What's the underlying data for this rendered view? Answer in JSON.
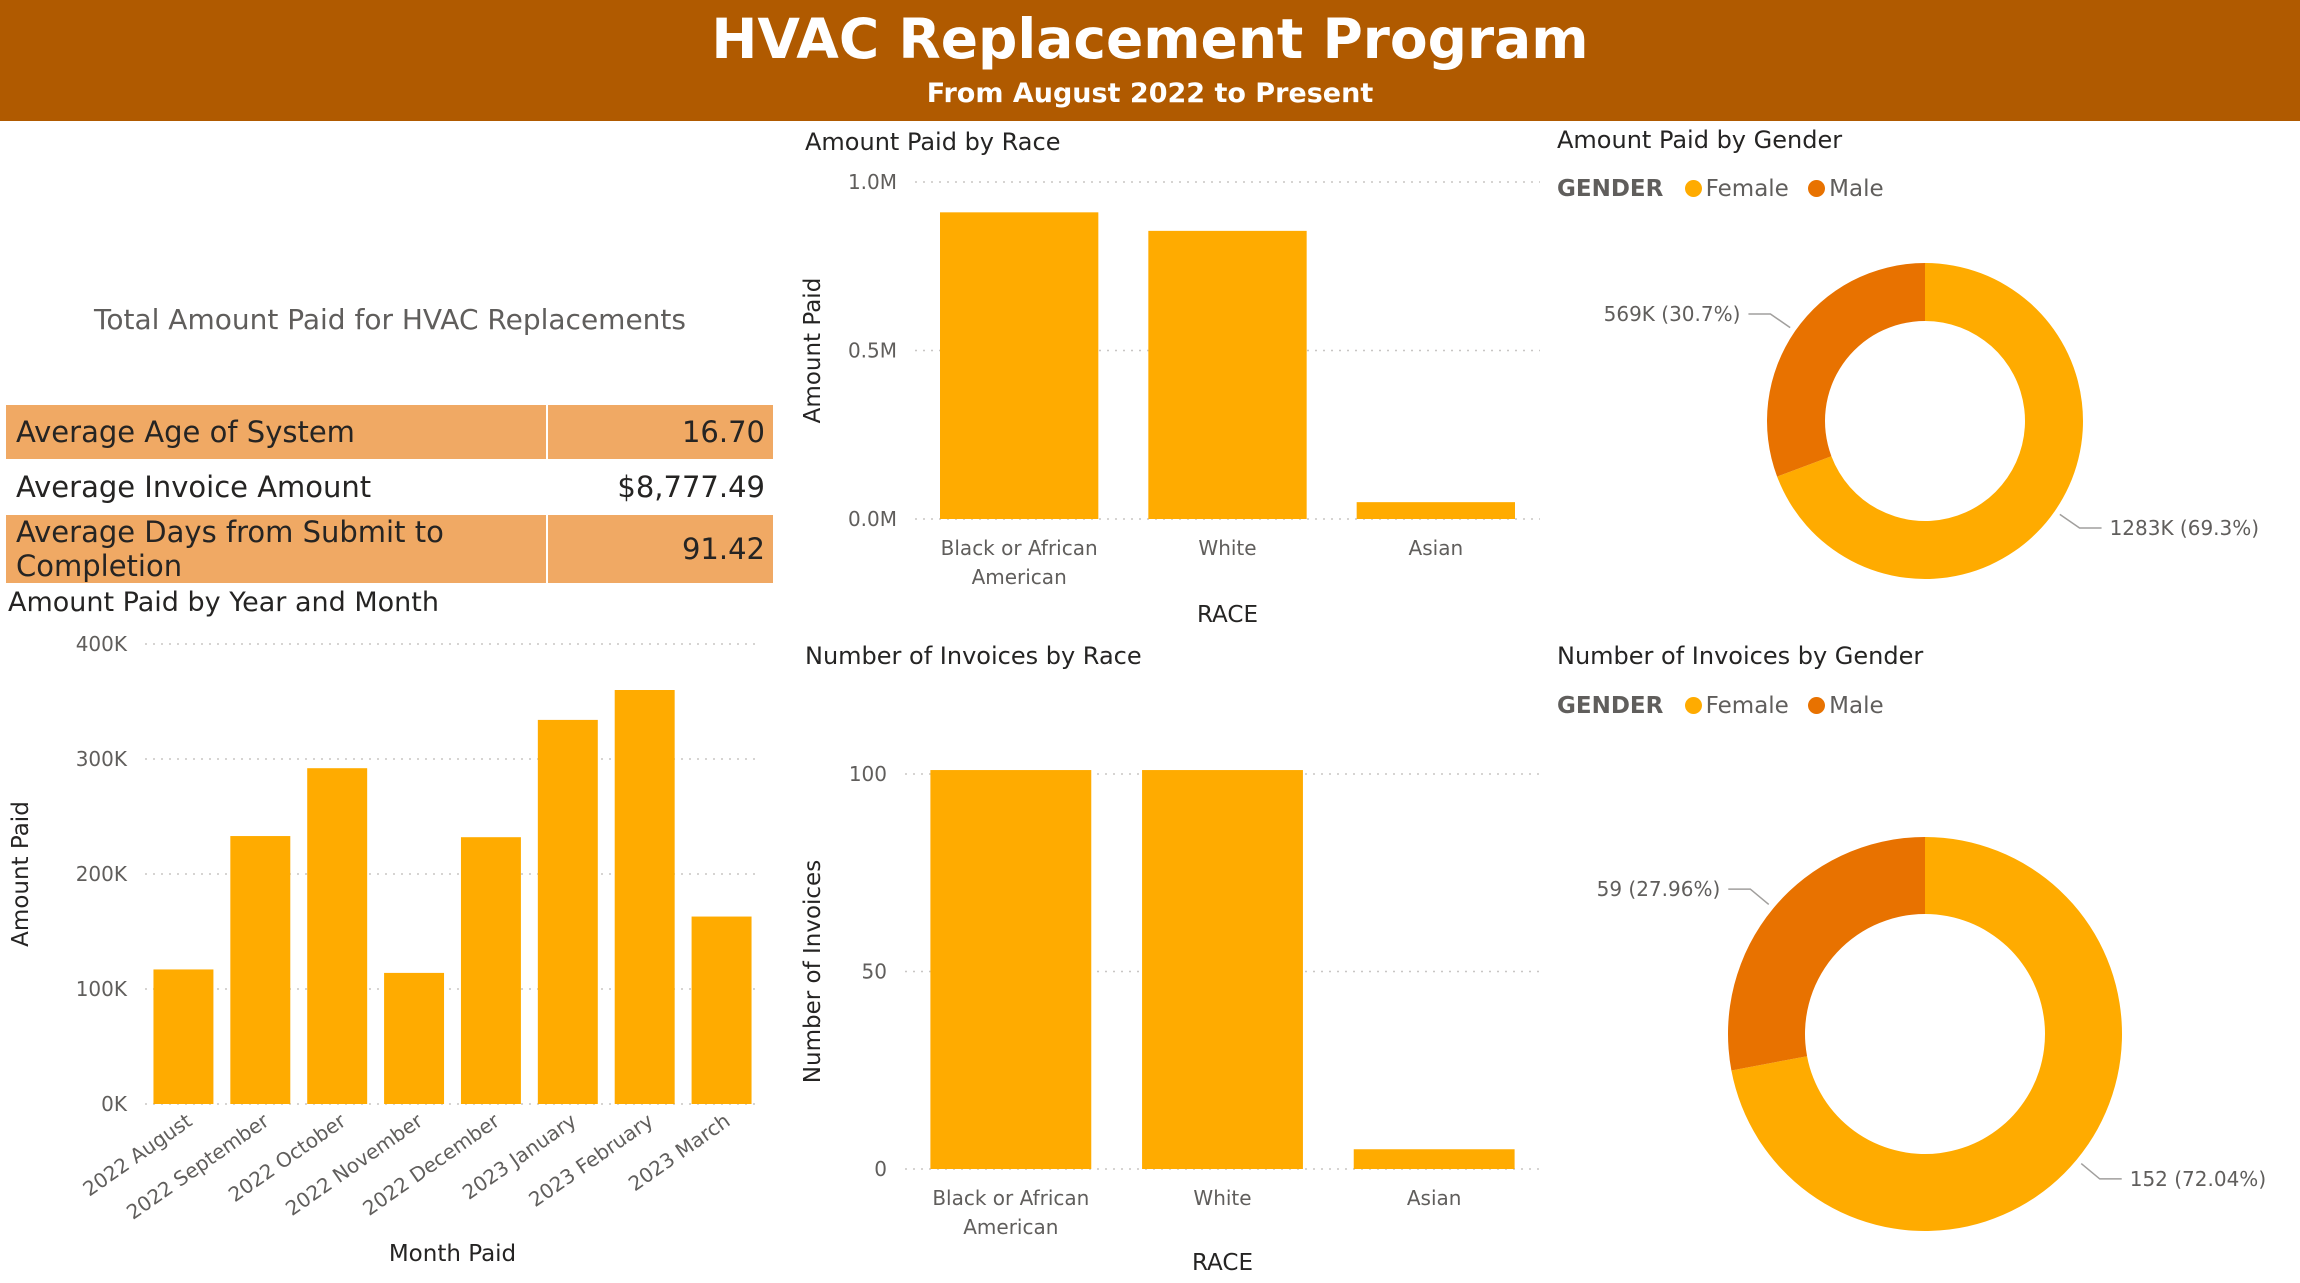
{
  "header": {
    "title": "HVAC Replacement Program",
    "subtitle": "From August 2022 to Present"
  },
  "colors": {
    "primary": "#ffab00",
    "secondary": "#e87200",
    "header_bg": "#b05a00",
    "highlight_row": "#f0a964"
  },
  "total_card": {
    "label": "Total Amount Paid for HVAC Replacements"
  },
  "kpis": [
    {
      "label": "Average Age of System",
      "value": "16.70",
      "highlight": true
    },
    {
      "label": "Average Invoice Amount",
      "value": "$8,777.49",
      "highlight": false
    },
    {
      "label": "Average Days from Submit to Completion",
      "value": "91.42",
      "highlight": true
    }
  ],
  "chart_data": [
    {
      "id": "paid_by_month",
      "type": "bar",
      "title": "Amount Paid by Year and Month",
      "xlabel": "Month Paid",
      "ylabel": "Amount Paid",
      "categories": [
        "2022 August",
        "2022 September",
        "2022 October",
        "2022 November",
        "2022 December",
        "2023 January",
        "2023 February",
        "2023 March"
      ],
      "values": [
        117000,
        233000,
        292000,
        114000,
        232000,
        334000,
        360000,
        163000
      ],
      "ylim": [
        0,
        400000
      ],
      "yticks": [
        0,
        100000,
        200000,
        300000,
        400000
      ],
      "ytick_labels": [
        "0K",
        "100K",
        "200K",
        "300K",
        "400K"
      ],
      "grid": true
    },
    {
      "id": "paid_by_race",
      "type": "bar",
      "title": "Amount Paid by Race",
      "xlabel": "RACE",
      "ylabel": "Amount Paid",
      "categories": [
        "Black or African American",
        "White",
        "Asian"
      ],
      "values": [
        910000,
        855000,
        50000
      ],
      "ylim": [
        0,
        1000000
      ],
      "yticks": [
        0,
        500000,
        1000000
      ],
      "ytick_labels": [
        "0.0M",
        "0.5M",
        "1.0M"
      ],
      "grid": true
    },
    {
      "id": "invoices_by_race",
      "type": "bar",
      "title": "Number of Invoices by Race",
      "xlabel": "RACE",
      "ylabel": "Number of Invoices",
      "categories": [
        "Black or African American",
        "White",
        "Asian"
      ],
      "values": [
        101,
        101,
        5
      ],
      "ylim": [
        0,
        100
      ],
      "yticks": [
        0,
        50,
        100
      ],
      "ytick_labels": [
        "0",
        "50",
        "100"
      ],
      "grid": true
    },
    {
      "id": "paid_by_gender",
      "type": "pie",
      "donut": true,
      "title": "Amount Paid by Gender",
      "legend_title": "GENDER",
      "legend_position": "top-left",
      "slices": [
        {
          "name": "Female",
          "value": 1283000,
          "percent": 69.3,
          "label": "1283K (69.3%)"
        },
        {
          "name": "Male",
          "value": 569000,
          "percent": 30.7,
          "label": "569K (30.7%)"
        }
      ]
    },
    {
      "id": "invoices_by_gender",
      "type": "pie",
      "donut": true,
      "title": "Number of Invoices by Gender",
      "legend_title": "GENDER",
      "legend_position": "top-left",
      "slices": [
        {
          "name": "Female",
          "value": 152,
          "percent": 72.04,
          "label": "152 (72.04%)"
        },
        {
          "name": "Male",
          "value": 59,
          "percent": 27.96,
          "label": "59 (27.96%)"
        }
      ]
    }
  ]
}
